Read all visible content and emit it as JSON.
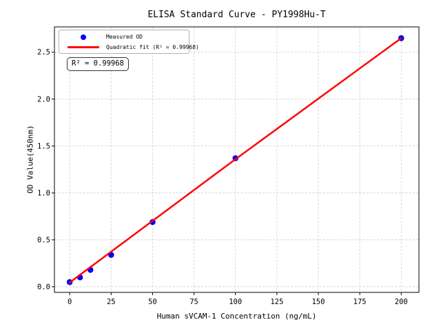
{
  "chart_data": {
    "type": "scatter",
    "title": "ELISA Standard Curve - PY1998Hu-T",
    "xlabel": "Human sVCAM-1 Concentration (ng/mL)",
    "ylabel": "OD Value(450nm)",
    "xlim": [
      -9.2,
      210.7
    ],
    "ylim": [
      -0.06,
      2.77
    ],
    "x_ticks": [
      0,
      25,
      50,
      75,
      100,
      125,
      150,
      175,
      200
    ],
    "x_tick_labels": [
      "0",
      "25",
      "50",
      "75",
      "100",
      "125",
      "150",
      "175",
      "200"
    ],
    "y_ticks": [
      0.0,
      0.5,
      1.0,
      1.5,
      2.0,
      2.5
    ],
    "y_tick_labels": [
      "0.0",
      "0.5",
      "1.0",
      "1.5",
      "2.0",
      "2.5"
    ],
    "grid": true,
    "legend_position": "upper left",
    "series": [
      {
        "name": "Measured OD",
        "type": "scatter",
        "color": "#0000ff",
        "x": [
          0,
          6.25,
          12.5,
          25,
          50,
          100,
          200
        ],
        "y": [
          0.05,
          0.1,
          0.18,
          0.34,
          0.69,
          1.37,
          2.65
        ]
      },
      {
        "name": "Quadratic fit (R² = 0.99968)",
        "type": "line",
        "color": "#ff0000",
        "x": [
          0,
          100,
          200
        ],
        "y": [
          0.045,
          1.36,
          2.65
        ]
      }
    ],
    "r_squared": 0.99968
  },
  "annotation": {
    "text": "R² = 0.99968"
  },
  "colors": {
    "point": "#0000ff",
    "fit_line": "#ff0000",
    "grid": "#cccccc",
    "axis": "#000000",
    "background": "#ffffff",
    "legend_border": "#b0b0b0",
    "annotation_border": "#333333"
  }
}
